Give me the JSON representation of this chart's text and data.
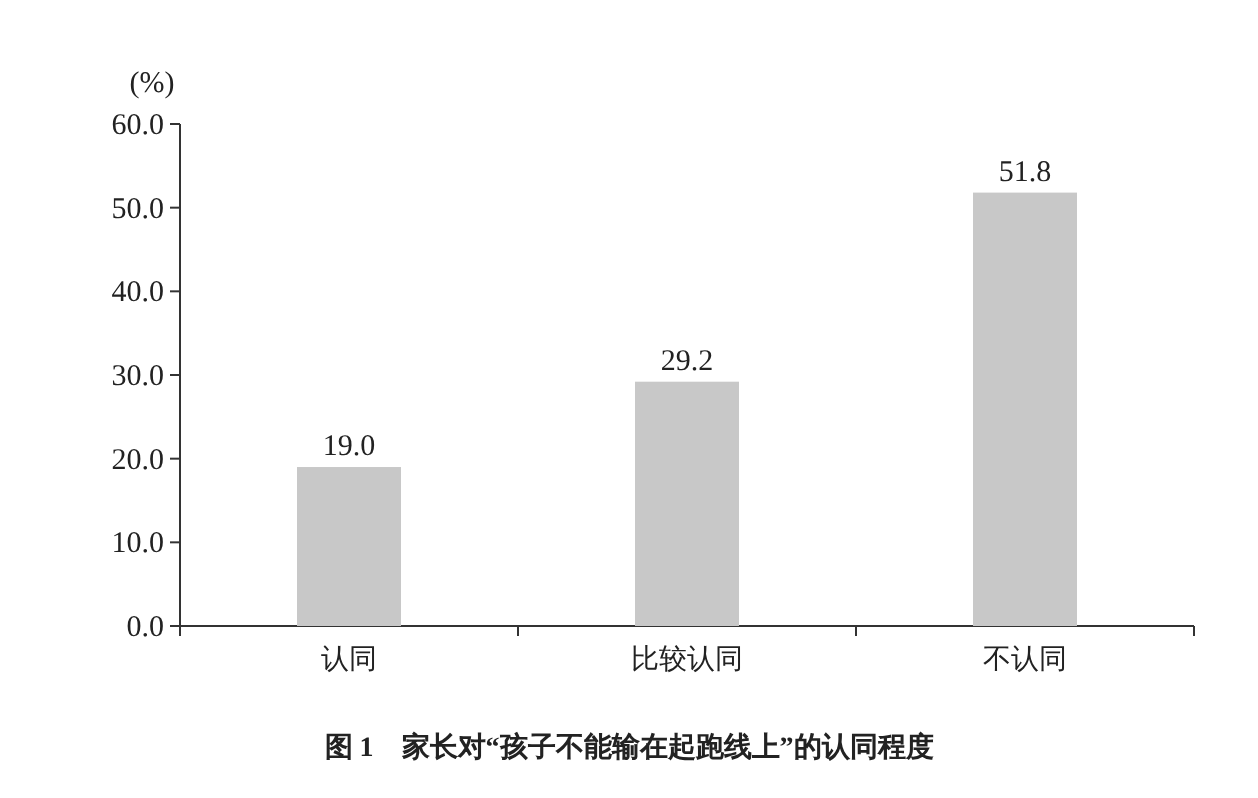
{
  "chart_data": {
    "type": "bar",
    "title": "图 1　家长对“孩子不能输在起跑线上”的认同程度",
    "ylabel": "(%)",
    "categories": [
      "认同",
      "比较认同",
      "不认同"
    ],
    "values": [
      19.0,
      29.2,
      51.8
    ],
    "color": "#c8c8c8",
    "ylim": [
      0,
      60
    ],
    "yticks": [
      {
        "value": 0,
        "label": "0.0"
      },
      {
        "value": 10,
        "label": "10.0"
      },
      {
        "value": 20,
        "label": "20.0"
      },
      {
        "value": 30,
        "label": "30.0"
      },
      {
        "value": 40,
        "label": "40.0"
      },
      {
        "value": 50,
        "label": "50.0"
      },
      {
        "value": 60,
        "label": "60.0"
      }
    ],
    "value_labels": [
      "19.0",
      "29.2",
      "51.8"
    ]
  }
}
